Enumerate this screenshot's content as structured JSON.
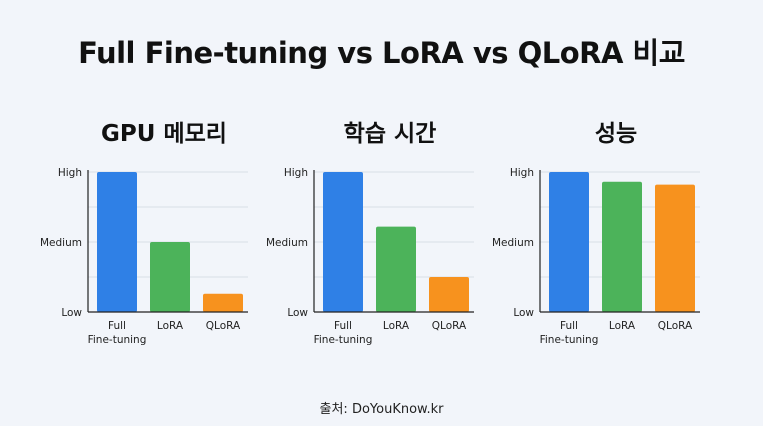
{
  "title": "Full Fine-tuning vs LoRA vs QLoRA 비교",
  "source": "출처: DoYouKnow.kr",
  "colors": {
    "full": "#2f80e6",
    "lora": "#4cb35a",
    "qlora": "#f7921e"
  },
  "chart_data": [
    {
      "type": "bar",
      "title": "GPU 메모리",
      "categories": [
        "Full\nFine-tuning",
        "LoRA",
        "QLoRA"
      ],
      "values": [
        1.0,
        0.5,
        0.13
      ],
      "yticks": [
        "Low",
        "Medium",
        "High"
      ],
      "ylim": [
        0,
        1
      ],
      "grid": true
    },
    {
      "type": "bar",
      "title": "학습 시간",
      "categories": [
        "Full\nFine-tuning",
        "LoRA",
        "QLoRA"
      ],
      "values": [
        1.0,
        0.61,
        0.25
      ],
      "yticks": [
        "Low",
        "Medium",
        "High"
      ],
      "ylim": [
        0,
        1
      ],
      "grid": true
    },
    {
      "type": "bar",
      "title": "성능",
      "categories": [
        "Full\nFine-tuning",
        "LoRA",
        "QLoRA"
      ],
      "values": [
        1.0,
        0.93,
        0.91
      ],
      "yticks": [
        "Low",
        "Medium",
        "High"
      ],
      "ylim": [
        0,
        1
      ],
      "grid": true
    }
  ]
}
